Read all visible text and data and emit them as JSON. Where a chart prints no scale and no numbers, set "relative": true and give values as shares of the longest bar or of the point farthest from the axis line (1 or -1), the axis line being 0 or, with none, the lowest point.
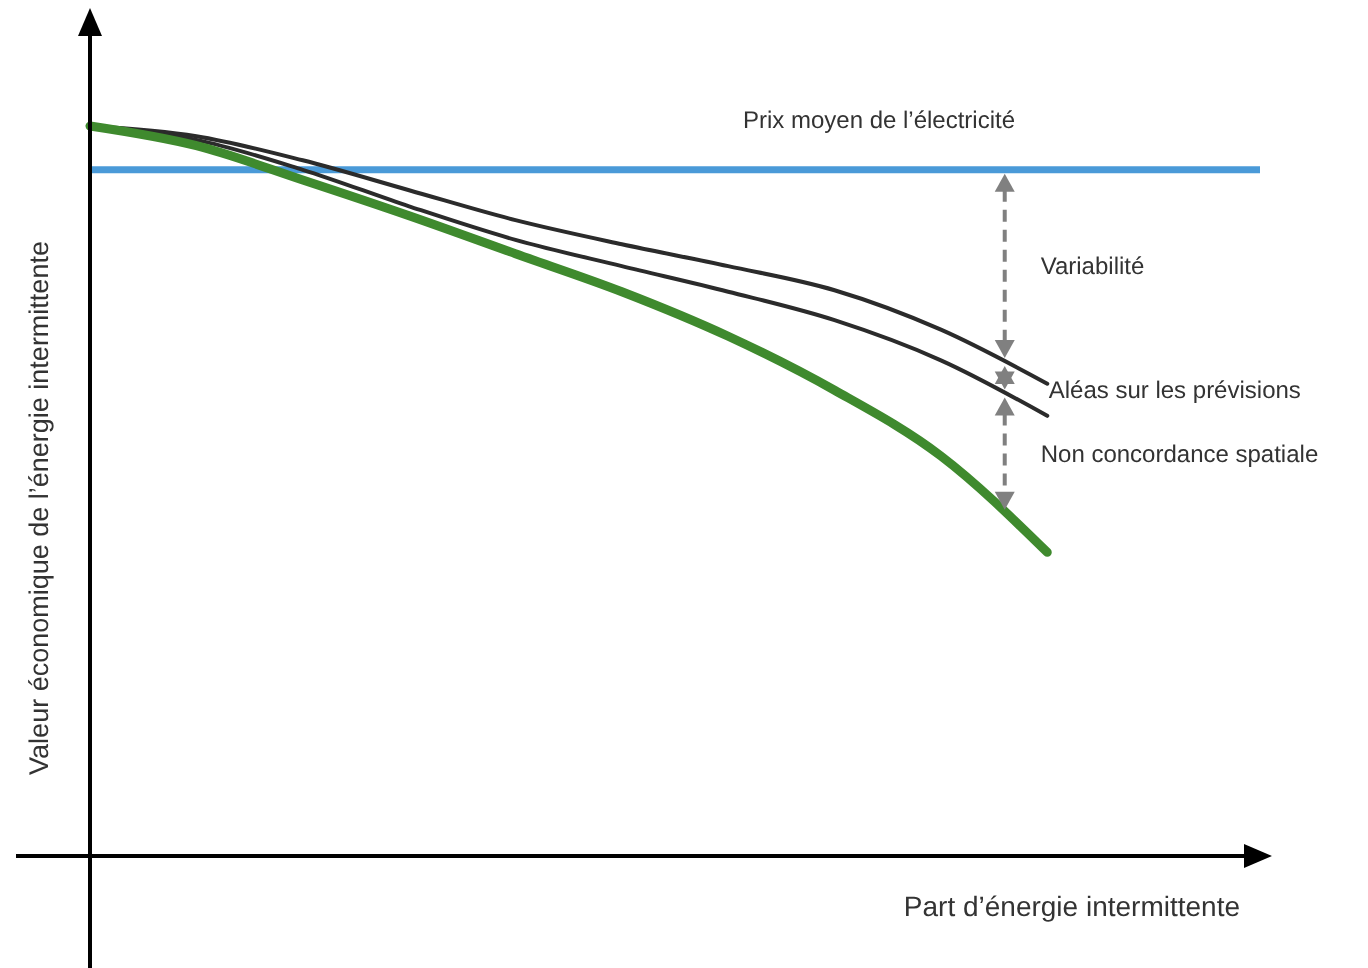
{
  "chart_data": {
    "type": "line",
    "relative": true,
    "xlabel": "Part d’énergie intermittente",
    "ylabel": "Valeur économique de l’énergie intermittente",
    "categories": [
      null,
      null,
      null,
      null,
      null,
      null,
      null,
      null,
      null,
      null,
      null,
      null
    ],
    "series": [
      {
        "color": "#2b2b2b",
        "values": [
          1,
          0.986,
          0.953,
          0.912,
          0.871,
          0.838,
          0.808,
          0.775,
          0.721,
          0.647,
          null,
          null
        ]
      },
      {
        "color": "#2b2b2b",
        "values": [
          1,
          0.981,
          0.94,
          0.89,
          0.844,
          0.808,
          0.773,
          0.734,
          0.679,
          0.603,
          null,
          null
        ]
      },
      {
        "color": "#3f8a2e",
        "values": [
          1,
          0.973,
          0.926,
          0.877,
          0.825,
          0.773,
          0.712,
          0.638,
          0.548,
          0.416,
          null,
          null
        ]
      }
    ],
    "ref_lines": [
      {
        "axis": "y",
        "value": 0.94,
        "label": "Prix moyen de l’électricité",
        "color": "#4a9ad8"
      }
    ],
    "annotations": [
      "Variabilité",
      "Aléas sur les prévisions",
      "Non concordance spatiale"
    ],
    "grid": false,
    "line_style": "solid"
  }
}
